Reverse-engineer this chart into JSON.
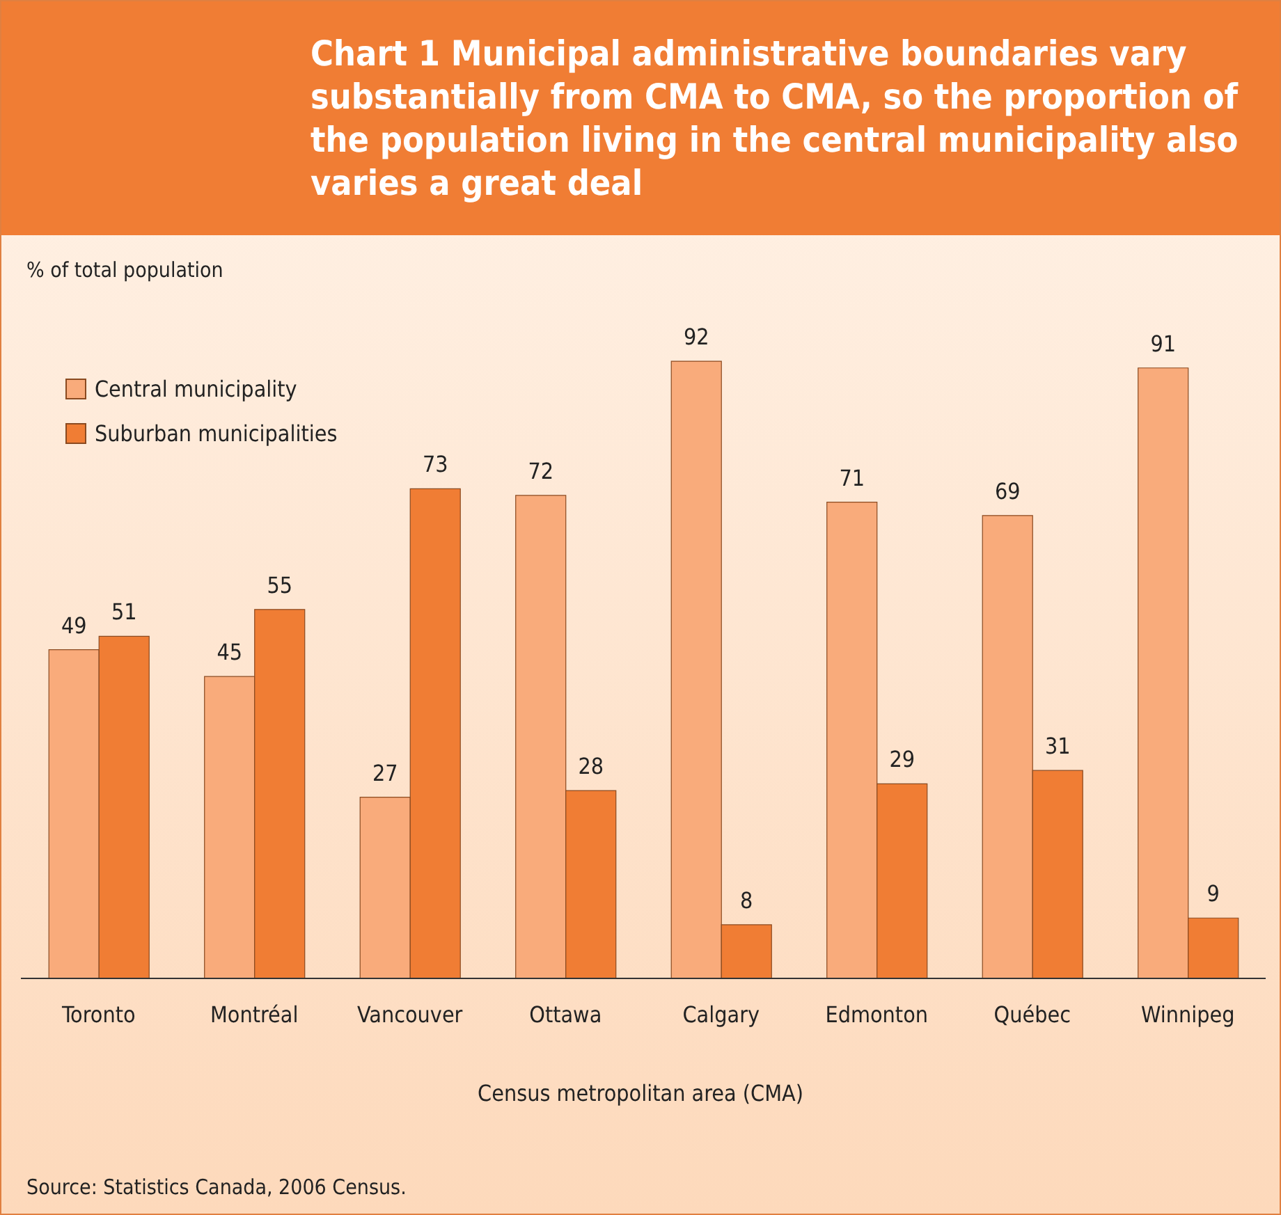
{
  "chart_data": {
    "type": "bar",
    "title": "Chart 1  Municipal administrative boundaries vary substantially from CMA to CMA, so the proportion of the population living in the central municipality also varies a great deal",
    "xlabel": "Census metropolitan area (CMA)",
    "annotations": [
      "% of total population",
      "Source: Statistics Canada, 2006 Census."
    ],
    "categories": [
      "Toronto",
      "Montréal",
      "Vancouver",
      "Ottawa",
      "Calgary",
      "Edmonton",
      "Québec",
      "Winnipeg"
    ],
    "series": [
      {
        "name": "Central municipality",
        "color": "#f9ab7b",
        "values": [
          49,
          45,
          27,
          72,
          92,
          71,
          69,
          91
        ]
      },
      {
        "name": "Suburban municipalities",
        "color": "#f07d34",
        "values": [
          51,
          55,
          73,
          28,
          8,
          29,
          31,
          9
        ]
      }
    ],
    "data_labels": true,
    "grid": false,
    "legend": "top left"
  }
}
